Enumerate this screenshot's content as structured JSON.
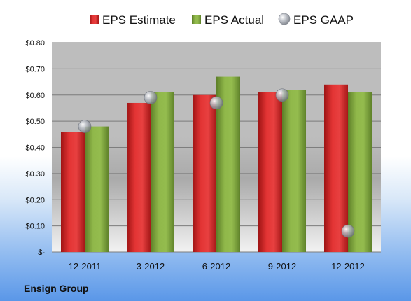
{
  "chart_data": {
    "type": "bar",
    "categories": [
      "12-2011",
      "3-2012",
      "6-2012",
      "9-2012",
      "12-2012"
    ],
    "series": [
      {
        "name": "EPS Estimate",
        "kind": "bar",
        "values": [
          0.46,
          0.57,
          0.6,
          0.61,
          0.64
        ]
      },
      {
        "name": "EPS Actual",
        "kind": "bar",
        "values": [
          0.48,
          0.61,
          0.67,
          0.62,
          0.61
        ]
      },
      {
        "name": "EPS GAAP",
        "kind": "scatter",
        "values": [
          0.48,
          0.59,
          0.57,
          0.6,
          0.08
        ]
      }
    ],
    "ylim": [
      0,
      0.8
    ],
    "yticks": [
      0,
      0.1,
      0.2,
      0.3,
      0.4,
      0.5,
      0.6,
      0.7,
      0.8
    ],
    "ytick_labels": [
      "$-",
      "$0.10",
      "$0.20",
      "$0.30",
      "$0.40",
      "$0.50",
      "$0.60",
      "$0.70",
      "$0.80"
    ],
    "grid": true,
    "legend_position": "top",
    "colors": {
      "estimate": "#d42a2a",
      "actual": "#7fa63e",
      "gaap": "#b8bcc4"
    }
  },
  "footer": {
    "company": "Ensign Group"
  }
}
